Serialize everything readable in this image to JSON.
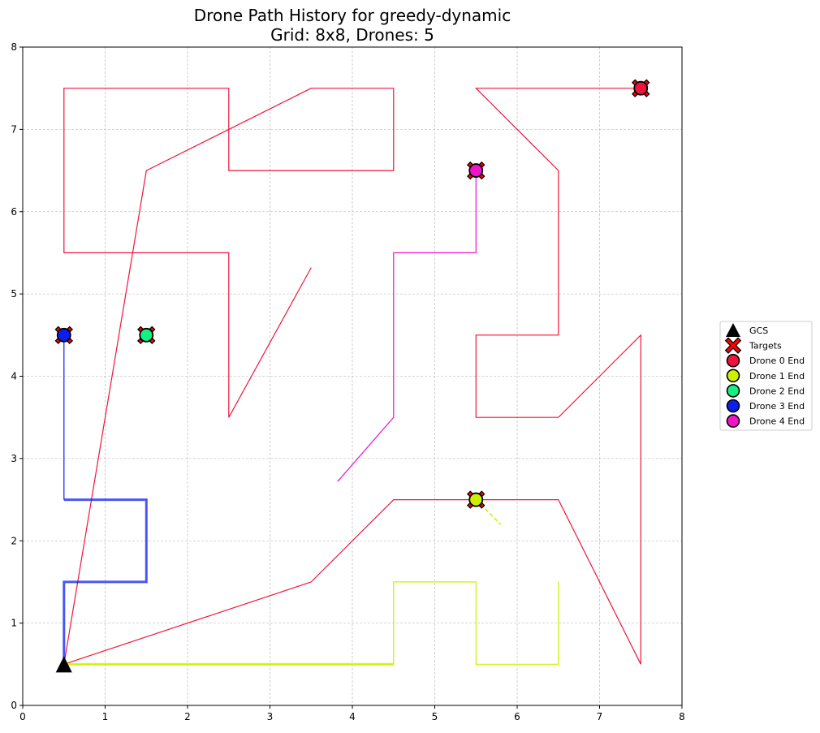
{
  "chart_data": {
    "type": "line",
    "title": "Drone Path History for greedy-dynamic",
    "subtitle": "Grid: 8x8, Drones: 5",
    "xlim": [
      0,
      8
    ],
    "ylim": [
      0,
      8
    ],
    "x_ticks": [
      "0",
      "1",
      "2",
      "3",
      "4",
      "5",
      "6",
      "7",
      "8"
    ],
    "y_ticks": [
      "0",
      "1",
      "2",
      "3",
      "4",
      "5",
      "6",
      "7",
      "8"
    ],
    "grid": true,
    "legend_placement": "outside-right",
    "legend": [
      {
        "label": "GCS",
        "marker": "triangle",
        "color": "#000000"
      },
      {
        "label": "Targets",
        "marker": "x",
        "color": "#ff0000"
      },
      {
        "label": "Drone 0 End",
        "marker": "circle",
        "color": "#f0143c"
      },
      {
        "label": "Drone 1 End",
        "marker": "circle",
        "color": "#cdf000"
      },
      {
        "label": "Drone 2 End",
        "marker": "circle",
        "color": "#14f082"
      },
      {
        "label": "Drone 3 End",
        "marker": "circle",
        "color": "#0a1ef0"
      },
      {
        "label": "Drone 4 End",
        "marker": "circle",
        "color": "#f014c8"
      }
    ],
    "gcs": {
      "x": 0.5,
      "y": 0.5
    },
    "series": [
      {
        "color": "#f0143c",
        "width": 1,
        "segments": [
          [
            [
              0.5,
              0.5
            ],
            [
              1.5,
              6.5
            ],
            [
              3.5,
              7.5
            ],
            [
              4.5,
              7.5
            ],
            [
              4.5,
              6.5
            ],
            [
              2.5,
              6.5
            ],
            [
              2.5,
              7.5
            ],
            [
              0.5,
              7.5
            ],
            [
              0.5,
              5.5
            ],
            [
              2.5,
              5.5
            ],
            [
              2.5,
              3.5
            ],
            [
              3.5,
              5.32
            ]
          ],
          [
            [
              0.5,
              0.5
            ],
            [
              3.5,
              1.5
            ],
            [
              4.5,
              2.5
            ],
            [
              6.5,
              2.5
            ],
            [
              7.5,
              0.5
            ],
            [
              7.5,
              4.5
            ],
            [
              6.5,
              3.5
            ],
            [
              5.5,
              3.5
            ],
            [
              5.5,
              4.5
            ],
            [
              6.5,
              4.5
            ],
            [
              6.5,
              6.5
            ],
            [
              5.5,
              7.5
            ],
            [
              7.5,
              7.5
            ]
          ]
        ],
        "end": {
          "x": 7.5,
          "y": 7.5
        }
      },
      {
        "color": "#cdf000",
        "width": 1,
        "segments": [
          [
            [
              0.5,
              0.5
            ],
            [
              4.5,
              0.5
            ],
            [
              4.5,
              1.5
            ],
            [
              5.5,
              1.5
            ],
            [
              5.5,
              0.5
            ],
            [
              6.5,
              0.5
            ],
            [
              6.5,
              1.5
            ]
          ]
        ],
        "thick_segments": [
          [
            [
              0.5,
              0.5
            ],
            [
              4.5,
              0.5
            ]
          ]
        ],
        "dashed_segments": [
          [
            [
              5.5,
              2.5
            ],
            [
              5.8,
              2.2
            ]
          ]
        ],
        "end": {
          "x": 5.5,
          "y": 2.5
        }
      },
      {
        "color": "#14f082",
        "width": 1,
        "segments": [],
        "end": {
          "x": 1.5,
          "y": 4.5
        }
      },
      {
        "color": "#0a1ef0",
        "width": 1,
        "segments": [
          [
            [
              0.5,
              2.5
            ],
            [
              0.5,
              4.5
            ]
          ]
        ],
        "thick_segments": [
          [
            [
              0.5,
              0.5
            ],
            [
              0.5,
              1.5
            ],
            [
              1.5,
              1.5
            ],
            [
              1.5,
              2.5
            ],
            [
              0.5,
              2.5
            ]
          ]
        ],
        "end": {
          "x": 0.5,
          "y": 4.5
        }
      },
      {
        "color": "#f014c8",
        "width": 1,
        "segments": [
          [
            [
              3.82,
              2.72
            ],
            [
              4.5,
              3.5
            ],
            [
              4.5,
              5.5
            ],
            [
              5.5,
              5.5
            ],
            [
              5.5,
              6.5
            ]
          ]
        ],
        "end": {
          "x": 5.5,
          "y": 6.5
        }
      }
    ]
  }
}
